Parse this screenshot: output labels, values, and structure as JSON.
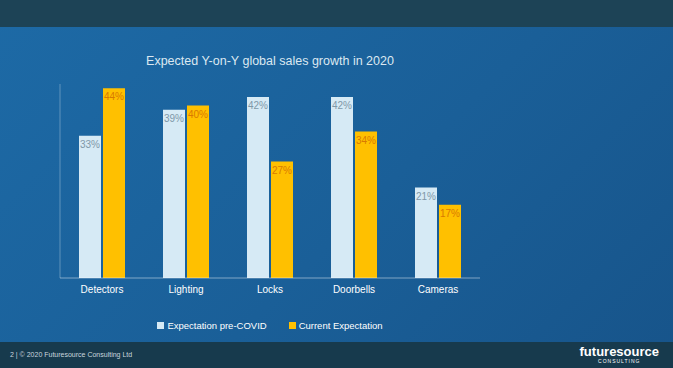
{
  "chart_data": {
    "type": "bar",
    "title": "Expected Y-on-Y global sales growth in 2020",
    "categories": [
      "Detectors",
      "Lighting",
      "Locks",
      "Doorbells",
      "Cameras"
    ],
    "series": [
      {
        "name": "Expectation pre-COVID",
        "color": "#d6eaf5",
        "values": [
          33,
          39,
          42,
          42,
          21
        ],
        "value_labels": [
          "33%",
          "39%",
          "42%",
          "42%",
          "21%"
        ]
      },
      {
        "name": "Current Expectation",
        "color": "#ffc000",
        "values": [
          44,
          40,
          27,
          34,
          17
        ],
        "value_labels": [
          "44%",
          "40%",
          "27%",
          "34%",
          "17%"
        ]
      }
    ],
    "ylim": [
      0,
      45
    ],
    "yticks": [
      0,
      45
    ],
    "tick_labels": "x",
    "data_labels": true,
    "grid": false,
    "legend": "bottom"
  },
  "footer": {
    "text": "2 | © 2020 Futuresource Consulting Ltd",
    "logo": "futuresource",
    "logo_sub": "CONSULTING"
  }
}
